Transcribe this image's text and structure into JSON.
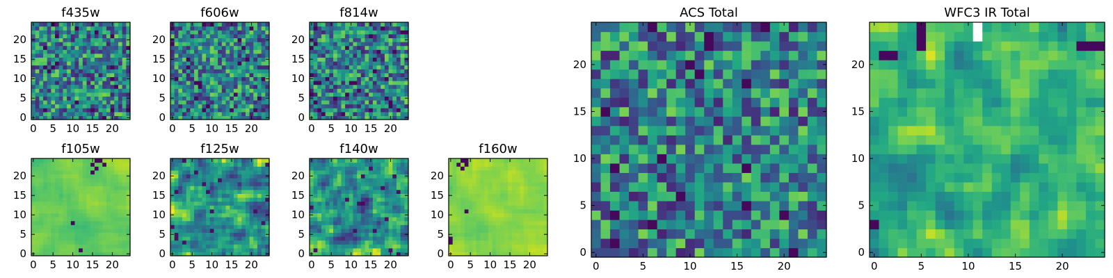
{
  "figure": {
    "panels": [
      {
        "id": "f435w",
        "title": "f435w",
        "xticks": [
          "0",
          "5",
          "10",
          "15",
          "20"
        ],
        "yticks": [
          "0",
          "5",
          "10",
          "15",
          "20"
        ]
      },
      {
        "id": "f606w",
        "title": "f606w",
        "xticks": [
          "0",
          "5",
          "10",
          "15",
          "20"
        ],
        "yticks": [
          "0",
          "5",
          "10",
          "15",
          "20"
        ]
      },
      {
        "id": "f814w",
        "title": "f814w",
        "xticks": [
          "0",
          "5",
          "10",
          "15",
          "20"
        ],
        "yticks": [
          "0",
          "5",
          "10",
          "15",
          "20"
        ]
      },
      {
        "id": "f105w",
        "title": "f105w",
        "xticks": [
          "0",
          "5",
          "10",
          "15",
          "20"
        ],
        "yticks": [
          "0",
          "5",
          "10",
          "15",
          "20"
        ]
      },
      {
        "id": "f125w",
        "title": "f125w",
        "xticks": [
          "0",
          "5",
          "10",
          "15",
          "20"
        ],
        "yticks": [
          "0",
          "5",
          "10",
          "15",
          "20"
        ]
      },
      {
        "id": "f140w",
        "title": "f140w",
        "xticks": [
          "0",
          "5",
          "10",
          "15",
          "20"
        ],
        "yticks": [
          "0",
          "5",
          "10",
          "15",
          "20"
        ]
      },
      {
        "id": "f160w",
        "title": "f160w",
        "xticks": [
          "0",
          "5",
          "10",
          "15",
          "20"
        ],
        "yticks": [
          "0",
          "5",
          "10",
          "15",
          "20"
        ]
      },
      {
        "id": "acs-total",
        "title": "ACS Total",
        "xticks": [
          "0",
          "5",
          "10",
          "15",
          "20"
        ],
        "yticks": [
          "0",
          "5",
          "10",
          "15",
          "20"
        ]
      },
      {
        "id": "wfc3-ir-total",
        "title": "WFC3 IR Total",
        "xticks": [
          "0",
          "5",
          "10",
          "15",
          "20"
        ],
        "yticks": [
          "0",
          "5",
          "10",
          "15",
          "20"
        ]
      }
    ]
  },
  "chart_data": [
    {
      "type": "heatmap",
      "title": "f435w",
      "grid_size": [
        25,
        25
      ],
      "xlim": [
        -0.5,
        24.5
      ],
      "ylim": [
        -0.5,
        24.5
      ],
      "colormap": "viridis",
      "appearance": "high-contrast noise, mostly green/teal with scattered yellow and dark purple pixels"
    },
    {
      "type": "heatmap",
      "title": "f606w",
      "grid_size": [
        25,
        25
      ],
      "xlim": [
        -0.5,
        24.5
      ],
      "ylim": [
        -0.5,
        24.5
      ],
      "colormap": "viridis",
      "appearance": "high-contrast noise with scattered dark purple pixels"
    },
    {
      "type": "heatmap",
      "title": "f814w",
      "grid_size": [
        25,
        25
      ],
      "xlim": [
        -0.5,
        24.5
      ],
      "ylim": [
        -0.5,
        24.5
      ],
      "colormap": "viridis",
      "appearance": "high-contrast noise, green/teal/yellow"
    },
    {
      "type": "heatmap",
      "title": "f105w",
      "grid_size": [
        25,
        25
      ],
      "xlim": [
        -0.5,
        24.5
      ],
      "ylim": [
        -0.5,
        24.5
      ],
      "colormap": "viridis",
      "appearance": "smooth light green-yellow with a few dark purple pixels near top (x~15-18, y~21-24)"
    },
    {
      "type": "heatmap",
      "title": "f125w",
      "grid_size": [
        25,
        25
      ],
      "xlim": [
        -0.5,
        24.5
      ],
      "ylim": [
        -0.5,
        24.5
      ],
      "colormap": "viridis",
      "appearance": "mottled green with dark teal/purple patches"
    },
    {
      "type": "heatmap",
      "title": "f140w",
      "grid_size": [
        25,
        25
      ],
      "xlim": [
        -0.5,
        24.5
      ],
      "ylim": [
        -0.5,
        24.5
      ],
      "colormap": "viridis",
      "appearance": "mottled green with dark purple patches"
    },
    {
      "type": "heatmap",
      "title": "f160w",
      "grid_size": [
        25,
        25
      ],
      "xlim": [
        -0.5,
        24.5
      ],
      "ylim": [
        -0.5,
        24.5
      ],
      "colormap": "viridis",
      "appearance": "smooth yellow-green with dark purple pixels near top-left (x~2-5, y~22-24)"
    },
    {
      "type": "heatmap",
      "title": "ACS Total",
      "grid_size": [
        25,
        25
      ],
      "xlim": [
        -0.5,
        24.5
      ],
      "ylim": [
        -0.5,
        24.5
      ],
      "colormap": "viridis",
      "appearance": "blocky green/teal/yellow with scattered dark purple pixels"
    },
    {
      "type": "heatmap",
      "title": "WFC3 IR Total",
      "grid_size": [
        25,
        25
      ],
      "xlim": [
        -0.5,
        24.5
      ],
      "ylim": [
        -0.5,
        24.5
      ],
      "colormap": "viridis",
      "appearance": "smoother green/yellow with dark purple pixels at top (y~21-24) and left (x~0, y~3), a white (masked) pixel near (11, 24)"
    }
  ]
}
